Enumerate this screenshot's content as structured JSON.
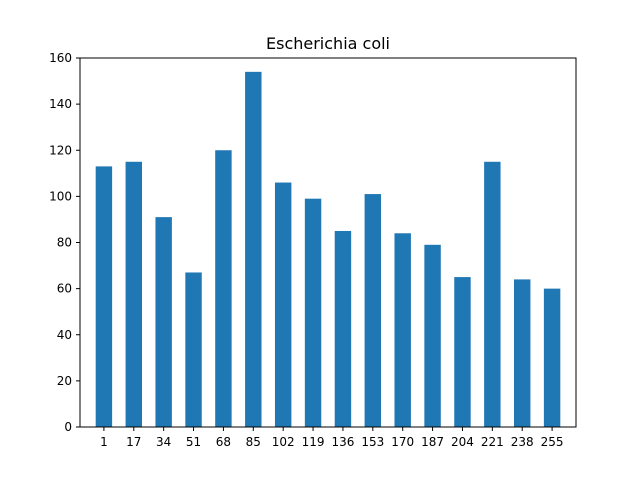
{
  "chart_data": {
    "type": "bar",
    "title": "Escherichia coli",
    "xlabel": "",
    "ylabel": "",
    "categories": [
      "1",
      "17",
      "34",
      "51",
      "68",
      "85",
      "102",
      "119",
      "136",
      "153",
      "170",
      "187",
      "204",
      "221",
      "238",
      "255"
    ],
    "values": [
      113,
      115,
      91,
      67,
      120,
      154,
      106,
      99,
      85,
      101,
      84,
      79,
      65,
      115,
      64,
      60
    ],
    "ylim": [
      0,
      160
    ],
    "yticks": [
      0,
      20,
      40,
      60,
      80,
      100,
      120,
      140,
      160
    ],
    "bar_color": "#1f77b4",
    "grid": false,
    "legend": "none"
  }
}
